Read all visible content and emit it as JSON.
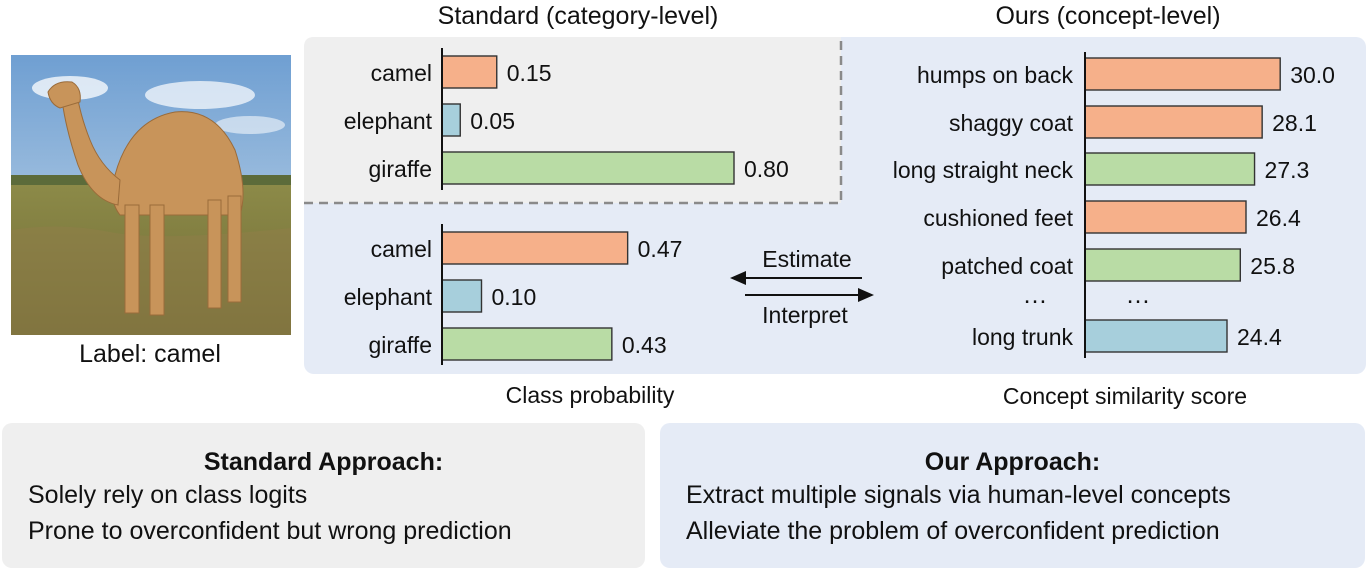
{
  "image_label": "Label: camel",
  "standard_heading": "Standard (category-level)",
  "ours_heading": "Ours (concept-level)",
  "standard_chart": {
    "categories": [
      "camel",
      "elephant",
      "giraffe"
    ],
    "values": [
      0.15,
      0.05,
      0.8
    ],
    "value_labels": [
      "0.15",
      "0.05",
      "0.80"
    ],
    "colors": [
      "#f6b08a",
      "#a7cfdc",
      "#b9dca5"
    ]
  },
  "ours_prob_chart": {
    "categories": [
      "camel",
      "elephant",
      "giraffe"
    ],
    "values": [
      0.47,
      0.1,
      0.43
    ],
    "value_labels": [
      "0.47",
      "0.10",
      "0.43"
    ],
    "colors": [
      "#f6b08a",
      "#a7cfdc",
      "#b9dca5"
    ],
    "xlabel": "Class probability"
  },
  "concept_chart": {
    "concepts": [
      "humps on back",
      "shaggy coat",
      "long straight neck",
      "cushioned feet",
      "patched coat",
      "long trunk"
    ],
    "values": [
      30.0,
      28.1,
      27.3,
      26.4,
      25.8,
      24.4
    ],
    "value_labels": [
      "30.0",
      "28.1",
      "27.3",
      "26.4",
      "25.8",
      "24.4"
    ],
    "colors": [
      "#f6b08a",
      "#f6b08a",
      "#b9dca5",
      "#f6b08a",
      "#b9dca5",
      "#a7cfdc"
    ],
    "ellipsis": "…",
    "xlabel": "Concept similarity score"
  },
  "arrows": {
    "estimate": "Estimate",
    "interpret": "Interpret"
  },
  "standard_approach": {
    "title": "Standard Approach:",
    "lines": [
      "Solely rely on class logits",
      "Prone to overconfident but wrong prediction"
    ]
  },
  "our_approach": {
    "title": "Our Approach:",
    "lines": [
      "Extract multiple signals via human-level concepts",
      "Alleviate the problem of overconfident prediction"
    ]
  },
  "image_colors": {
    "sky": "#8fb6dd",
    "ground": "#7b7a3c",
    "camel": "#c8945a"
  },
  "panel_colors": {
    "blue_panel": "#e5ebf6",
    "gray_panel": "#efefef"
  }
}
